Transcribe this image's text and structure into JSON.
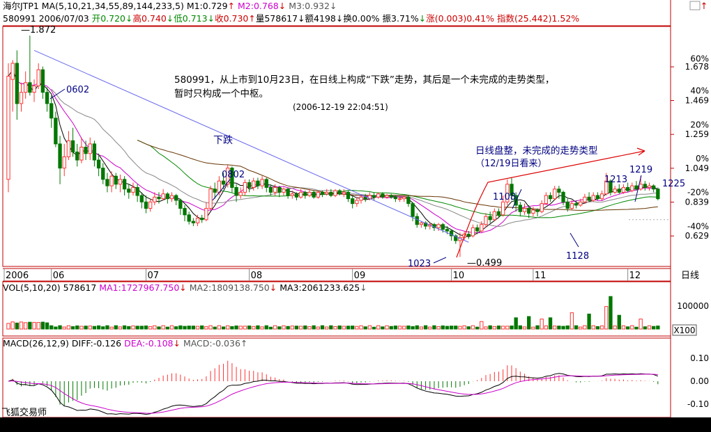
{
  "header": {
    "line1": [
      {
        "text": "海尔JTP1",
        "color": "#000000"
      },
      {
        "text": " MA(5,10,21,34,55,89,144,233,5)",
        "color": "#000000"
      },
      {
        "text": " M1:0.729",
        "color": "#000000"
      },
      {
        "text": "↑",
        "color": "#cc0000"
      },
      {
        "text": " M2:0.768",
        "color": "#cc00cc"
      },
      {
        "text": "↓",
        "color": "#cc0000"
      },
      {
        "text": " M3:0.932",
        "color": "#555555"
      },
      {
        "text": "↓",
        "color": "#555555"
      }
    ],
    "line2": [
      {
        "text": "580991 2006/07/03 ",
        "color": "#000000"
      },
      {
        "text": "开0.720",
        "color": "#008800"
      },
      {
        "text": "↓",
        "color": "#008800"
      },
      {
        "text": "高0.740",
        "color": "#cc0000"
      },
      {
        "text": "↓",
        "color": "#008800"
      },
      {
        "text": "低0.713",
        "color": "#008800"
      },
      {
        "text": "↓",
        "color": "#008800"
      },
      {
        "text": "收0.730",
        "color": "#cc0000"
      },
      {
        "text": "↑",
        "color": "#cc0000"
      },
      {
        "text": "量578617",
        "color": "#000000"
      },
      {
        "text": "↓",
        "color": "#000000"
      },
      {
        "text": "额4198",
        "color": "#000000"
      },
      {
        "text": "↓",
        "color": "#000000"
      },
      {
        "text": "换0.00%",
        "color": "#000000"
      },
      {
        "text": " 振3.71%",
        "color": "#000000"
      },
      {
        "text": "↓",
        "color": "#008800"
      },
      {
        "text": "涨(0.003)0.41%",
        "color": "#cc0000"
      },
      {
        "text": " 指数(25.442)1.52%",
        "color": "#cc0000"
      }
    ],
    "top_right_arrow": "↑"
  },
  "chart_data": {
    "type": "candlestick",
    "x_months": [
      "2006",
      "06",
      "07",
      "08",
      "09",
      "10",
      "11",
      "12"
    ],
    "right_tab": "日线",
    "y_axis_price": {
      "ticks": [
        "1.678",
        "1.469",
        "1.259",
        "1.049",
        "0.839",
        "0.629"
      ],
      "percent_ticks": [
        "60%",
        "40%",
        "20%",
        "0%",
        "-20%",
        "-40%"
      ]
    },
    "annotations": {
      "hi_start": "1.872",
      "label_0602": "0602",
      "label_0802": "0802",
      "fall": "下跌",
      "label_1023": "1023",
      "low": "0.499",
      "label_1108": "1108",
      "label_1128": "1128",
      "label_1213": "1213",
      "label_1219": "1219",
      "label_1225": "1225",
      "note1": "580991，从上市到10月23日，在日线上构成“下跌”走势，其后是一个未完成的走势类型，",
      "note2": "暂时只构成一个中枢。",
      "note_time": "(2006-12-19 22:04:51)",
      "note3": "日线盘整，未完成的走势类型",
      "note4": "（12/19日看来）"
    },
    "candles": [
      {
        "o": 0.98,
        "c": 1.62,
        "h": 1.7,
        "l": 0.9
      },
      {
        "o": 1.6,
        "c": 1.7,
        "h": 1.72,
        "l": 1.4
      },
      {
        "o": 1.7,
        "c": 1.45,
        "h": 1.78,
        "l": 1.35
      },
      {
        "o": 1.45,
        "c": 1.52,
        "h": 1.58,
        "l": 1.4
      },
      {
        "o": 1.52,
        "c": 1.58,
        "h": 1.65,
        "l": 1.48
      },
      {
        "o": 1.58,
        "c": 1.52,
        "h": 1.872,
        "l": 1.5
      },
      {
        "o": 1.52,
        "c": 1.56,
        "h": 1.6,
        "l": 1.46
      },
      {
        "o": 1.56,
        "c": 1.66,
        "h": 1.7,
        "l": 1.54
      },
      {
        "o": 1.66,
        "c": 1.52,
        "h": 1.68,
        "l": 1.48
      },
      {
        "o": 1.52,
        "c": 1.45,
        "h": 1.55,
        "l": 1.4
      },
      {
        "o": 1.45,
        "c": 1.36,
        "h": 1.5,
        "l": 1.3
      },
      {
        "o": 1.36,
        "c": 1.2,
        "h": 1.4,
        "l": 1.18
      },
      {
        "o": 1.2,
        "c": 1.05,
        "h": 1.25,
        "l": 0.95
      },
      {
        "o": 1.05,
        "c": 1.12,
        "h": 1.2,
        "l": 1.0
      },
      {
        "o": 1.12,
        "c": 1.22,
        "h": 1.28,
        "l": 1.1
      },
      {
        "o": 1.22,
        "c": 1.15,
        "h": 1.3,
        "l": 1.12
      },
      {
        "o": 1.15,
        "c": 1.1,
        "h": 1.2,
        "l": 1.06
      },
      {
        "o": 1.1,
        "c": 1.18,
        "h": 1.24,
        "l": 1.08
      },
      {
        "o": 1.18,
        "c": 1.14,
        "h": 1.22,
        "l": 1.1
      },
      {
        "o": 1.14,
        "c": 1.2,
        "h": 1.24,
        "l": 1.1
      },
      {
        "o": 1.2,
        "c": 1.1,
        "h": 1.22,
        "l": 1.06
      },
      {
        "o": 1.1,
        "c": 1.05,
        "h": 1.14,
        "l": 1.0
      },
      {
        "o": 1.05,
        "c": 0.98,
        "h": 1.08,
        "l": 0.95
      },
      {
        "o": 0.98,
        "c": 0.94,
        "h": 1.02,
        "l": 0.9
      },
      {
        "o": 0.94,
        "c": 1.0,
        "h": 1.03,
        "l": 0.9
      },
      {
        "o": 1.0,
        "c": 0.95,
        "h": 1.02,
        "l": 0.92
      },
      {
        "o": 0.95,
        "c": 0.98,
        "h": 1.01,
        "l": 0.9
      },
      {
        "o": 0.98,
        "c": 0.92,
        "h": 1.0,
        "l": 0.88
      },
      {
        "o": 0.92,
        "c": 0.9,
        "h": 0.95,
        "l": 0.86
      },
      {
        "o": 0.9,
        "c": 0.93,
        "h": 0.96,
        "l": 0.88
      },
      {
        "o": 0.93,
        "c": 0.88,
        "h": 0.95,
        "l": 0.84
      },
      {
        "o": 0.88,
        "c": 0.84,
        "h": 0.9,
        "l": 0.8
      },
      {
        "o": 0.84,
        "c": 0.8,
        "h": 0.88,
        "l": 0.77
      },
      {
        "o": 0.8,
        "c": 0.84,
        "h": 0.86,
        "l": 0.78
      },
      {
        "o": 0.84,
        "c": 0.87,
        "h": 0.9,
        "l": 0.82
      },
      {
        "o": 0.87,
        "c": 0.86,
        "h": 0.9,
        "l": 0.83
      },
      {
        "o": 0.86,
        "c": 0.89,
        "h": 0.92,
        "l": 0.85
      },
      {
        "o": 0.89,
        "c": 0.86,
        "h": 0.9,
        "l": 0.83
      },
      {
        "o": 0.86,
        "c": 0.88,
        "h": 0.9,
        "l": 0.84
      },
      {
        "o": 0.88,
        "c": 0.85,
        "h": 0.89,
        "l": 0.82
      },
      {
        "o": 0.85,
        "c": 0.8,
        "h": 0.86,
        "l": 0.76
      },
      {
        "o": 0.8,
        "c": 0.76,
        "h": 0.82,
        "l": 0.72
      },
      {
        "o": 0.76,
        "c": 0.72,
        "h": 0.78,
        "l": 0.7
      },
      {
        "o": 0.72,
        "c": 0.71,
        "h": 0.74,
        "l": 0.69
      },
      {
        "o": 0.71,
        "c": 0.74,
        "h": 0.76,
        "l": 0.69
      },
      {
        "o": 0.74,
        "c": 0.73,
        "h": 0.76,
        "l": 0.71
      },
      {
        "o": 0.73,
        "c": 0.8,
        "h": 0.84,
        "l": 0.72
      },
      {
        "o": 0.8,
        "c": 0.92,
        "h": 0.94,
        "l": 0.79
      },
      {
        "o": 0.92,
        "c": 0.9,
        "h": 0.96,
        "l": 0.86
      },
      {
        "o": 0.9,
        "c": 0.97,
        "h": 1.0,
        "l": 0.88
      },
      {
        "o": 0.97,
        "c": 0.95,
        "h": 1.02,
        "l": 0.92
      },
      {
        "o": 0.95,
        "c": 1.05,
        "h": 1.07,
        "l": 0.93
      },
      {
        "o": 1.05,
        "c": 0.93,
        "h": 1.06,
        "l": 0.9
      },
      {
        "o": 0.93,
        "c": 0.88,
        "h": 0.95,
        "l": 0.84
      },
      {
        "o": 0.88,
        "c": 0.9,
        "h": 0.93,
        "l": 0.86
      },
      {
        "o": 0.9,
        "c": 0.96,
        "h": 0.98,
        "l": 0.88
      },
      {
        "o": 0.96,
        "c": 0.93,
        "h": 0.98,
        "l": 0.9
      },
      {
        "o": 0.93,
        "c": 0.97,
        "h": 0.99,
        "l": 0.91
      },
      {
        "o": 0.97,
        "c": 0.94,
        "h": 0.99,
        "l": 0.92
      },
      {
        "o": 0.94,
        "c": 0.98,
        "h": 1.0,
        "l": 0.92
      },
      {
        "o": 0.98,
        "c": 0.93,
        "h": 0.99,
        "l": 0.9
      },
      {
        "o": 0.93,
        "c": 0.9,
        "h": 0.95,
        "l": 0.88
      },
      {
        "o": 0.9,
        "c": 0.93,
        "h": 0.95,
        "l": 0.88
      },
      {
        "o": 0.93,
        "c": 0.9,
        "h": 0.94,
        "l": 0.87
      },
      {
        "o": 0.9,
        "c": 0.92,
        "h": 0.93,
        "l": 0.88
      },
      {
        "o": 0.92,
        "c": 0.88,
        "h": 0.93,
        "l": 0.86
      },
      {
        "o": 0.88,
        "c": 0.89,
        "h": 0.91,
        "l": 0.86
      },
      {
        "o": 0.89,
        "c": 0.87,
        "h": 0.9,
        "l": 0.85
      },
      {
        "o": 0.87,
        "c": 0.9,
        "h": 0.92,
        "l": 0.86
      },
      {
        "o": 0.9,
        "c": 0.88,
        "h": 0.91,
        "l": 0.86
      },
      {
        "o": 0.88,
        "c": 0.9,
        "h": 0.92,
        "l": 0.87
      },
      {
        "o": 0.9,
        "c": 0.87,
        "h": 0.91,
        "l": 0.86
      },
      {
        "o": 0.87,
        "c": 0.9,
        "h": 0.91,
        "l": 0.86
      },
      {
        "o": 0.9,
        "c": 0.89,
        "h": 0.91,
        "l": 0.87
      },
      {
        "o": 0.89,
        "c": 0.9,
        "h": 0.92,
        "l": 0.88
      },
      {
        "o": 0.9,
        "c": 0.88,
        "h": 0.92,
        "l": 0.87
      },
      {
        "o": 0.88,
        "c": 0.91,
        "h": 0.92,
        "l": 0.87
      },
      {
        "o": 0.91,
        "c": 0.89,
        "h": 0.92,
        "l": 0.88
      },
      {
        "o": 0.89,
        "c": 0.9,
        "h": 0.92,
        "l": 0.87
      },
      {
        "o": 0.9,
        "c": 0.86,
        "h": 0.91,
        "l": 0.84
      },
      {
        "o": 0.86,
        "c": 0.83,
        "h": 0.88,
        "l": 0.8
      },
      {
        "o": 0.83,
        "c": 0.85,
        "h": 0.87,
        "l": 0.81
      },
      {
        "o": 0.85,
        "c": 0.87,
        "h": 0.88,
        "l": 0.83
      },
      {
        "o": 0.87,
        "c": 0.86,
        "h": 0.89,
        "l": 0.84
      },
      {
        "o": 0.86,
        "c": 0.88,
        "h": 0.9,
        "l": 0.85
      },
      {
        "o": 0.88,
        "c": 0.87,
        "h": 0.9,
        "l": 0.85
      },
      {
        "o": 0.87,
        "c": 0.89,
        "h": 0.9,
        "l": 0.86
      },
      {
        "o": 0.89,
        "c": 0.87,
        "h": 0.9,
        "l": 0.86
      },
      {
        "o": 0.87,
        "c": 0.88,
        "h": 0.89,
        "l": 0.86
      },
      {
        "o": 0.88,
        "c": 0.87,
        "h": 0.89,
        "l": 0.86
      },
      {
        "o": 0.87,
        "c": 0.86,
        "h": 0.88,
        "l": 0.84
      },
      {
        "o": 0.86,
        "c": 0.86,
        "h": 0.88,
        "l": 0.84
      },
      {
        "o": 0.86,
        "c": 0.87,
        "h": 0.88,
        "l": 0.84
      },
      {
        "o": 0.87,
        "c": 0.83,
        "h": 0.88,
        "l": 0.81
      },
      {
        "o": 0.83,
        "c": 0.75,
        "h": 0.84,
        "l": 0.72
      },
      {
        "o": 0.75,
        "c": 0.7,
        "h": 0.77,
        "l": 0.68
      },
      {
        "o": 0.7,
        "c": 0.71,
        "h": 0.72,
        "l": 0.68
      },
      {
        "o": 0.71,
        "c": 0.69,
        "h": 0.72,
        "l": 0.67
      },
      {
        "o": 0.69,
        "c": 0.7,
        "h": 0.71,
        "l": 0.67
      },
      {
        "o": 0.7,
        "c": 0.68,
        "h": 0.71,
        "l": 0.66
      },
      {
        "o": 0.68,
        "c": 0.7,
        "h": 0.71,
        "l": 0.66
      },
      {
        "o": 0.7,
        "c": 0.67,
        "h": 0.71,
        "l": 0.65
      },
      {
        "o": 0.67,
        "c": 0.66,
        "h": 0.69,
        "l": 0.64
      },
      {
        "o": 0.66,
        "c": 0.63,
        "h": 0.67,
        "l": 0.6
      },
      {
        "o": 0.63,
        "c": 0.6,
        "h": 0.64,
        "l": 0.58
      },
      {
        "o": 0.6,
        "c": 0.62,
        "h": 0.65,
        "l": 0.499
      },
      {
        "o": 0.62,
        "c": 0.64,
        "h": 0.66,
        "l": 0.6
      },
      {
        "o": 0.64,
        "c": 0.63,
        "h": 0.66,
        "l": 0.61
      },
      {
        "o": 0.63,
        "c": 0.68,
        "h": 0.7,
        "l": 0.62
      },
      {
        "o": 0.68,
        "c": 0.66,
        "h": 0.7,
        "l": 0.64
      },
      {
        "o": 0.66,
        "c": 0.7,
        "h": 0.72,
        "l": 0.65
      },
      {
        "o": 0.7,
        "c": 0.75,
        "h": 0.77,
        "l": 0.68
      },
      {
        "o": 0.75,
        "c": 0.73,
        "h": 0.78,
        "l": 0.71
      },
      {
        "o": 0.73,
        "c": 0.78,
        "h": 0.8,
        "l": 0.72
      },
      {
        "o": 0.78,
        "c": 0.76,
        "h": 0.8,
        "l": 0.74
      },
      {
        "o": 0.76,
        "c": 0.84,
        "h": 0.88,
        "l": 0.75
      },
      {
        "o": 0.84,
        "c": 0.95,
        "h": 0.98,
        "l": 0.82
      },
      {
        "o": 0.95,
        "c": 0.88,
        "h": 0.99,
        "l": 0.85
      },
      {
        "o": 0.88,
        "c": 0.82,
        "h": 0.9,
        "l": 0.78
      },
      {
        "o": 0.82,
        "c": 0.78,
        "h": 0.84,
        "l": 0.75
      },
      {
        "o": 0.78,
        "c": 0.8,
        "h": 0.83,
        "l": 0.76
      },
      {
        "o": 0.8,
        "c": 0.77,
        "h": 0.82,
        "l": 0.74
      },
      {
        "o": 0.77,
        "c": 0.79,
        "h": 0.81,
        "l": 0.75
      },
      {
        "o": 0.79,
        "c": 0.78,
        "h": 0.8,
        "l": 0.75
      },
      {
        "o": 0.78,
        "c": 0.83,
        "h": 0.85,
        "l": 0.77
      },
      {
        "o": 0.83,
        "c": 0.88,
        "h": 0.9,
        "l": 0.82
      },
      {
        "o": 0.88,
        "c": 0.86,
        "h": 0.9,
        "l": 0.84
      },
      {
        "o": 0.86,
        "c": 0.92,
        "h": 0.94,
        "l": 0.85
      },
      {
        "o": 0.92,
        "c": 0.9,
        "h": 0.94,
        "l": 0.86
      },
      {
        "o": 0.9,
        "c": 0.84,
        "h": 0.91,
        "l": 0.82
      },
      {
        "o": 0.84,
        "c": 0.8,
        "h": 0.86,
        "l": 0.78
      },
      {
        "o": 0.8,
        "c": 0.83,
        "h": 0.85,
        "l": 0.79
      },
      {
        "o": 0.83,
        "c": 0.82,
        "h": 0.85,
        "l": 0.8
      },
      {
        "o": 0.82,
        "c": 0.84,
        "h": 0.86,
        "l": 0.81
      },
      {
        "o": 0.84,
        "c": 0.87,
        "h": 0.89,
        "l": 0.83
      },
      {
        "o": 0.87,
        "c": 0.85,
        "h": 0.9,
        "l": 0.84
      },
      {
        "o": 0.85,
        "c": 0.88,
        "h": 0.9,
        "l": 0.84
      },
      {
        "o": 0.88,
        "c": 0.86,
        "h": 0.9,
        "l": 0.85
      },
      {
        "o": 0.86,
        "c": 0.89,
        "h": 0.91,
        "l": 0.85
      },
      {
        "o": 0.89,
        "c": 0.97,
        "h": 1.02,
        "l": 0.88
      },
      {
        "o": 0.97,
        "c": 0.9,
        "h": 0.98,
        "l": 0.88
      },
      {
        "o": 0.9,
        "c": 0.92,
        "h": 0.94,
        "l": 0.89
      },
      {
        "o": 0.92,
        "c": 0.9,
        "h": 0.95,
        "l": 0.89
      },
      {
        "o": 0.9,
        "c": 0.93,
        "h": 0.95,
        "l": 0.89
      },
      {
        "o": 0.93,
        "c": 0.91,
        "h": 0.96,
        "l": 0.9
      },
      {
        "o": 0.91,
        "c": 0.94,
        "h": 0.96,
        "l": 0.9
      },
      {
        "o": 0.94,
        "c": 0.92,
        "h": 0.97,
        "l": 0.91
      },
      {
        "o": 0.92,
        "c": 0.95,
        "h": 1.0,
        "l": 0.91
      },
      {
        "o": 0.95,
        "c": 0.93,
        "h": 0.97,
        "l": 0.91
      },
      {
        "o": 0.93,
        "c": 0.94,
        "h": 0.96,
        "l": 0.91
      },
      {
        "o": 0.94,
        "c": 0.92,
        "h": 0.95,
        "l": 0.9
      },
      {
        "o": 0.92,
        "c": 0.86,
        "h": 0.93,
        "l": 0.85
      }
    ],
    "volume": {
      "label": "VOL(5,10,20)",
      "value": "578617",
      "ma1_label": "MA1:1727967.750",
      "ma1_arrow": "↓",
      "ma2_label": "MA2:1809138.750",
      "ma2_arrow": "↓",
      "ma3_label": "MA3:2061233.625",
      "ma3_arrow": "↓",
      "axis_tick": "100000",
      "unit_box": "X100",
      "spikes": [
        {
          "i": 131,
          "v": 1.3
        },
        {
          "i": 118,
          "v": 0.9
        },
        {
          "i": 140,
          "v": 2.6
        },
        {
          "i": 139,
          "v": 1.8
        },
        {
          "i": 152,
          "v": 1.0
        },
        {
          "i": 147,
          "v": 0.8
        },
        {
          "i": 135,
          "v": 1.2
        },
        {
          "i": 126,
          "v": 0.9
        },
        {
          "i": 121,
          "v": 1.0
        },
        {
          "i": 142,
          "v": 1.1
        },
        {
          "i": 124,
          "v": 0.8
        },
        {
          "i": 110,
          "v": 0.6
        }
      ]
    },
    "macd": {
      "label": "MACD(26,12,9)",
      "diff": "DIFF:-0.126",
      "dea": "DEA:-0.108",
      "dea_arrow": "↓",
      "macd": "MACD:-0.036",
      "macd_arrow": "↑",
      "ticks": [
        "0.10",
        "0.00",
        "-0.10"
      ]
    },
    "footer": "飞狐交易师",
    "colors": {
      "bg": "#ffffff",
      "up": "#ff3333",
      "down": "#007700",
      "ma1": "#000000",
      "ma2": "#cc00cc",
      "ma3": "#888888",
      "ma_green": "#008800",
      "ma_brown": "#663300",
      "trendline": "#6666ee",
      "axis": "#c00000",
      "grid": "#888888"
    }
  }
}
